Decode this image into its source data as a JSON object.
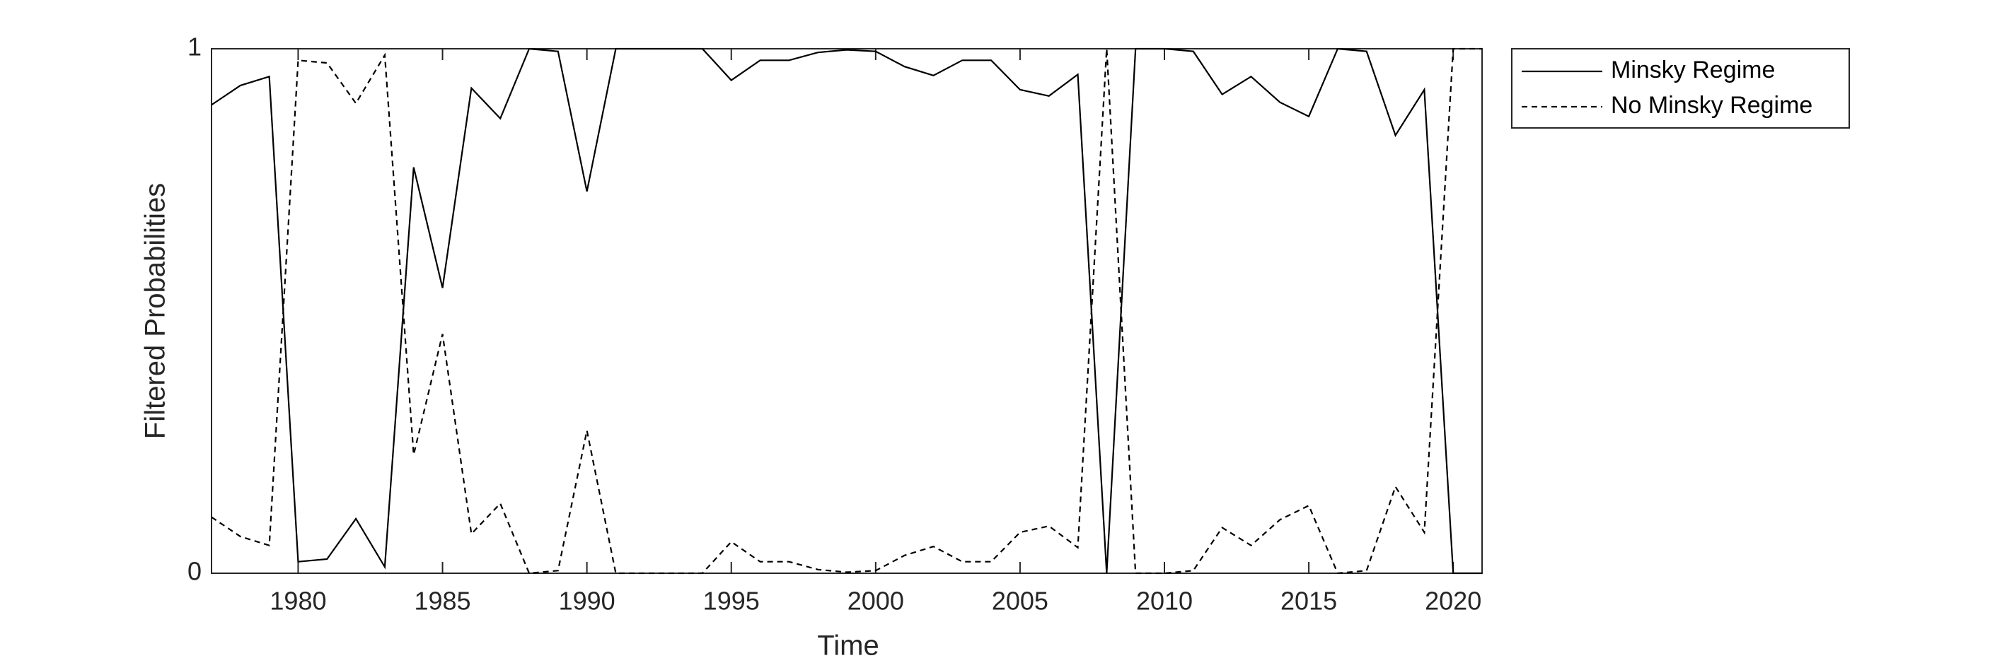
{
  "chart_data": {
    "type": "line",
    "x_label": "Time",
    "y_label": "Filtered Probabilities",
    "x": [
      1977,
      1978,
      1979,
      1980,
      1981,
      1982,
      1983,
      1984,
      1985,
      1986,
      1987,
      1988,
      1989,
      1990,
      1991,
      1992,
      1993,
      1994,
      1995,
      1996,
      1997,
      1998,
      1999,
      2000,
      2001,
      2002,
      2003,
      2004,
      2005,
      2006,
      2007,
      2008,
      2009,
      2010,
      2011,
      2012,
      2013,
      2014,
      2015,
      2016,
      2017,
      2018,
      2019,
      2020,
      2021
    ],
    "series": [
      {
        "name": "Minsky Regime",
        "color": "#000000",
        "dash": "solid",
        "values": [
          0.893,
          0.93,
          0.947,
          0.022,
          0.027,
          0.104,
          0.012,
          0.774,
          0.544,
          0.925,
          0.867,
          1,
          0.995,
          0.728,
          1,
          1,
          1,
          1,
          0.94,
          0.978,
          0.978,
          0.993,
          0.998,
          0.995,
          0.966,
          0.949,
          0.978,
          0.978,
          0.922,
          0.91,
          0.951,
          0,
          1,
          1,
          0.995,
          0.913,
          0.947,
          0.898,
          0.871,
          1,
          0.995,
          0.835,
          0.922,
          0,
          0
        ]
      },
      {
        "name": "No Minsky Regime",
        "color": "#000000",
        "dash": "dashed",
        "values": [
          0.107,
          0.07,
          0.053,
          0.978,
          0.973,
          0.896,
          0.988,
          0.226,
          0.456,
          0.075,
          0.133,
          0,
          0.005,
          0.272,
          0,
          0,
          0,
          0,
          0.06,
          0.022,
          0.022,
          0.007,
          0.002,
          0.005,
          0.034,
          0.051,
          0.022,
          0.022,
          0.078,
          0.09,
          0.049,
          1,
          0,
          0,
          0.005,
          0.087,
          0.053,
          0.102,
          0.129,
          0,
          0.005,
          0.165,
          0.078,
          1,
          1
        ]
      }
    ],
    "xlim": [
      1977,
      2021
    ],
    "xticks": [
      1980,
      1985,
      1990,
      1995,
      2000,
      2005,
      2010,
      2015,
      2020
    ],
    "ylim": [
      0,
      1
    ],
    "yticks": [
      0,
      1
    ],
    "legend": "outside-top-right"
  }
}
